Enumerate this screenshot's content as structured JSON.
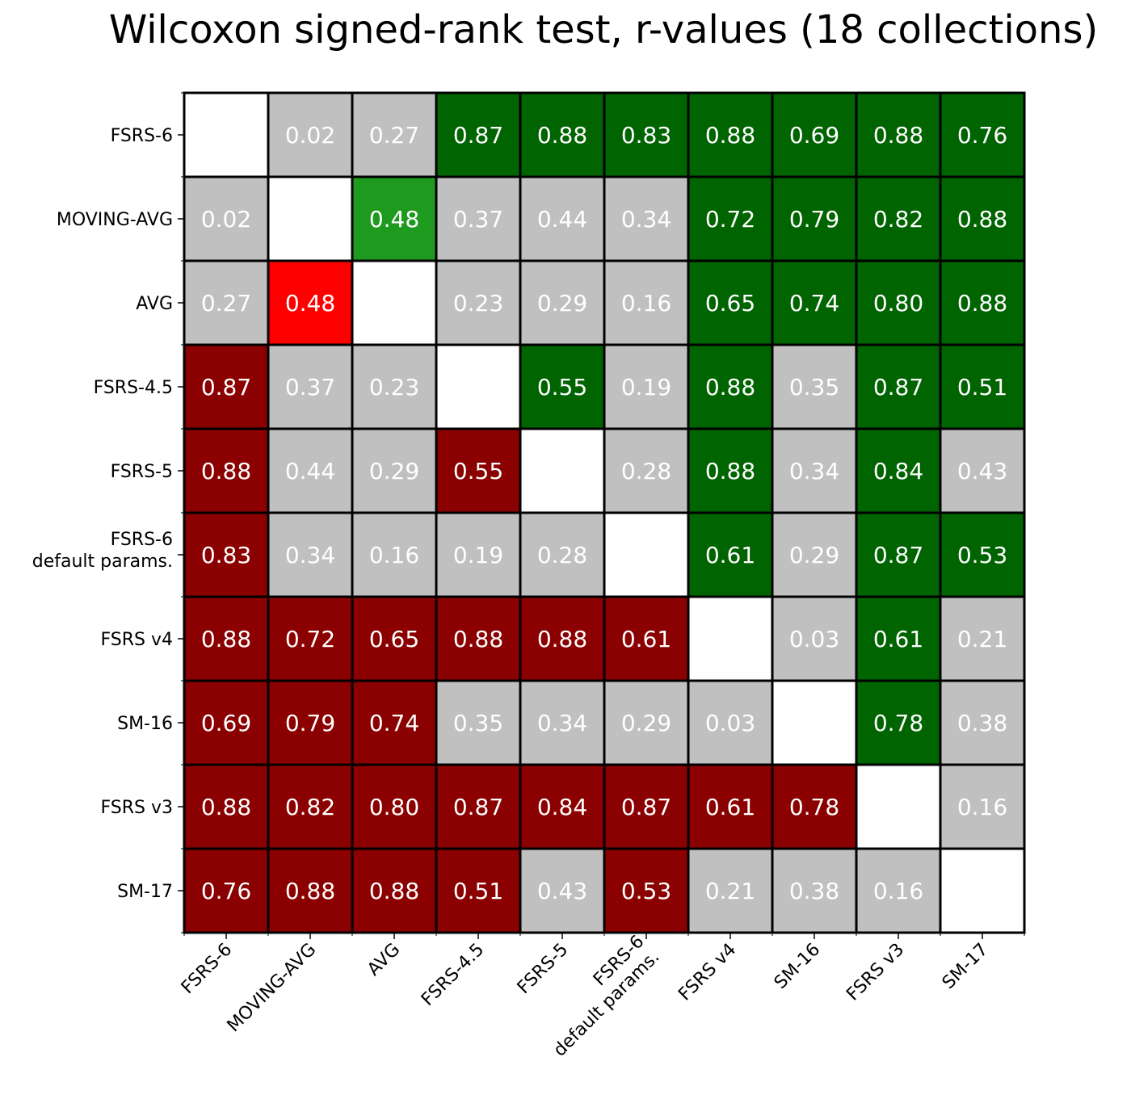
{
  "chart_data": {
    "type": "heatmap",
    "title": "Wilcoxon signed-rank test, r-values (18 collections)",
    "labels": [
      "FSRS-6",
      "MOVING-AVG",
      "AVG",
      "FSRS-4.5",
      "FSRS-5",
      "FSRS-6\ndefault params.",
      "FSRS v4",
      "SM-16",
      "FSRS v3",
      "SM-17"
    ],
    "values": [
      [
        null,
        0.02,
        0.27,
        0.87,
        0.88,
        0.83,
        0.88,
        0.69,
        0.88,
        0.76
      ],
      [
        0.02,
        null,
        0.48,
        0.37,
        0.44,
        0.34,
        0.72,
        0.79,
        0.82,
        0.88
      ],
      [
        0.27,
        0.48,
        null,
        0.23,
        0.29,
        0.16,
        0.65,
        0.74,
        0.8,
        0.88
      ],
      [
        0.87,
        0.37,
        0.23,
        null,
        0.55,
        0.19,
        0.88,
        0.35,
        0.87,
        0.51
      ],
      [
        0.88,
        0.44,
        0.29,
        0.55,
        null,
        0.28,
        0.88,
        0.34,
        0.84,
        0.43
      ],
      [
        0.83,
        0.34,
        0.16,
        0.19,
        0.28,
        null,
        0.61,
        0.29,
        0.87,
        0.53
      ],
      [
        0.88,
        0.72,
        0.65,
        0.88,
        0.88,
        0.61,
        null,
        0.03,
        0.61,
        0.21
      ],
      [
        0.69,
        0.79,
        0.74,
        0.35,
        0.34,
        0.29,
        0.03,
        null,
        0.78,
        0.38
      ],
      [
        0.88,
        0.82,
        0.8,
        0.87,
        0.84,
        0.87,
        0.61,
        0.78,
        null,
        0.16
      ],
      [
        0.76,
        0.88,
        0.88,
        0.51,
        0.43,
        0.53,
        0.21,
        0.38,
        0.16,
        null
      ]
    ],
    "cell_colors": [
      [
        "white",
        "gray",
        "gray",
        "darkgreen",
        "darkgreen",
        "darkgreen",
        "darkgreen",
        "darkgreen",
        "darkgreen",
        "darkgreen"
      ],
      [
        "gray",
        "white",
        "green",
        "gray",
        "gray",
        "gray",
        "darkgreen",
        "darkgreen",
        "darkgreen",
        "darkgreen"
      ],
      [
        "gray",
        "red",
        "white",
        "gray",
        "gray",
        "gray",
        "darkgreen",
        "darkgreen",
        "darkgreen",
        "darkgreen"
      ],
      [
        "darkred",
        "gray",
        "gray",
        "white",
        "darkgreen",
        "gray",
        "darkgreen",
        "gray",
        "darkgreen",
        "darkgreen"
      ],
      [
        "darkred",
        "gray",
        "gray",
        "darkred",
        "white",
        "gray",
        "darkgreen",
        "gray",
        "darkgreen",
        "gray"
      ],
      [
        "darkred",
        "gray",
        "gray",
        "gray",
        "gray",
        "white",
        "darkgreen",
        "gray",
        "darkgreen",
        "darkgreen"
      ],
      [
        "darkred",
        "darkred",
        "darkred",
        "darkred",
        "darkred",
        "darkred",
        "white",
        "gray",
        "darkgreen",
        "gray"
      ],
      [
        "darkred",
        "darkred",
        "darkred",
        "gray",
        "gray",
        "gray",
        "gray",
        "white",
        "darkgreen",
        "gray"
      ],
      [
        "darkred",
        "darkred",
        "darkred",
        "darkred",
        "darkred",
        "darkred",
        "darkred",
        "darkred",
        "white",
        "gray"
      ],
      [
        "darkred",
        "darkred",
        "darkred",
        "darkred",
        "gray",
        "darkred",
        "gray",
        "gray",
        "gray",
        "white"
      ]
    ],
    "palette": {
      "white": "#ffffff",
      "gray": "#c0c0c0",
      "darkgreen": "#006400",
      "green": "#1e9a1e",
      "darkred": "#8b0000",
      "red": "#ff0000"
    },
    "value_decimals": 2
  }
}
